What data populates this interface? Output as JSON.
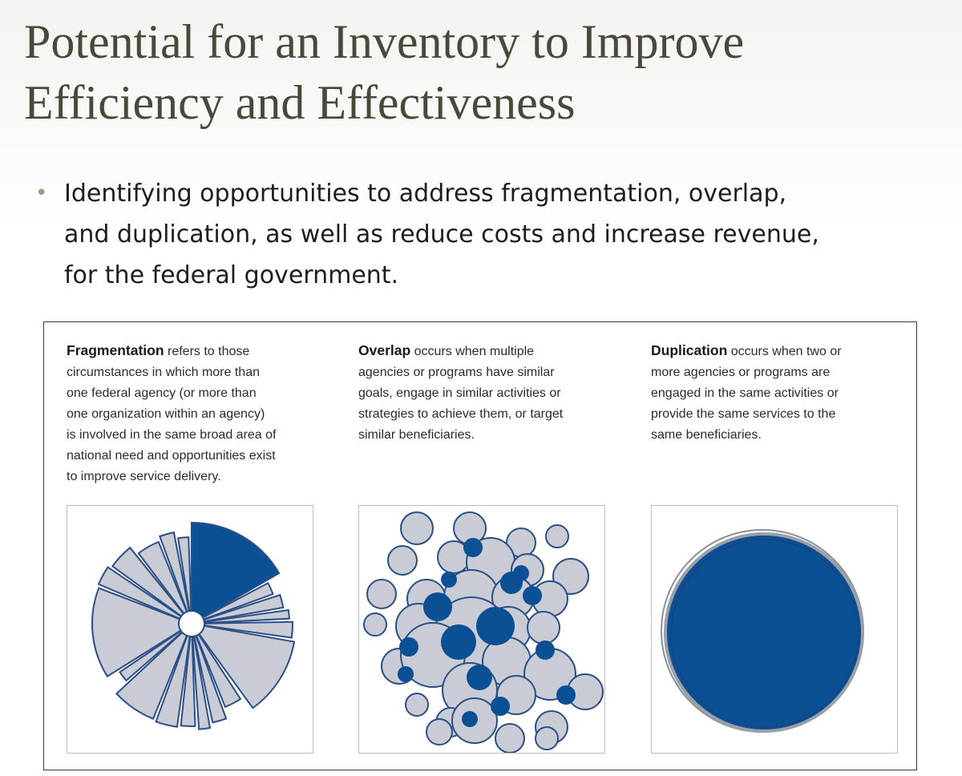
{
  "title": {
    "line1": "Potential for an Inventory to Improve",
    "line2": "Efficiency and Effectiveness"
  },
  "bullet": {
    "line1": "Identifying opportunities to address fragmentation, overlap,",
    "line2": "and duplication, as well as reduce costs and increase revenue,",
    "line3": "for the federal government."
  },
  "definitions": {
    "fragmentation": {
      "term": "Fragmentation",
      "lines": [
        "refers to those",
        "circumstances in which more than",
        "one federal agency (or more than",
        "one organization within an agency)",
        "is involved in the same broad area of",
        "national need and opportunities exist",
        "to improve service delivery."
      ]
    },
    "overlap": {
      "term": "Overlap",
      "lines": [
        "occurs when multiple",
        "agencies or programs have similar",
        "goals, engage in similar activities or",
        "strategies to achieve them, or target",
        "similar beneficiaries."
      ]
    },
    "duplication": {
      "term": "Duplication",
      "lines": [
        "occurs when two or",
        "more agencies or programs are",
        "engaged in the same activities or",
        "provide the same services to the",
        "same beneficiaries."
      ]
    }
  },
  "colors": {
    "dark_blue": "#0b4f95",
    "light_gray": "#c9ccd4",
    "stroke_blue": "#2a4f86",
    "title_color": "#4a4839"
  }
}
